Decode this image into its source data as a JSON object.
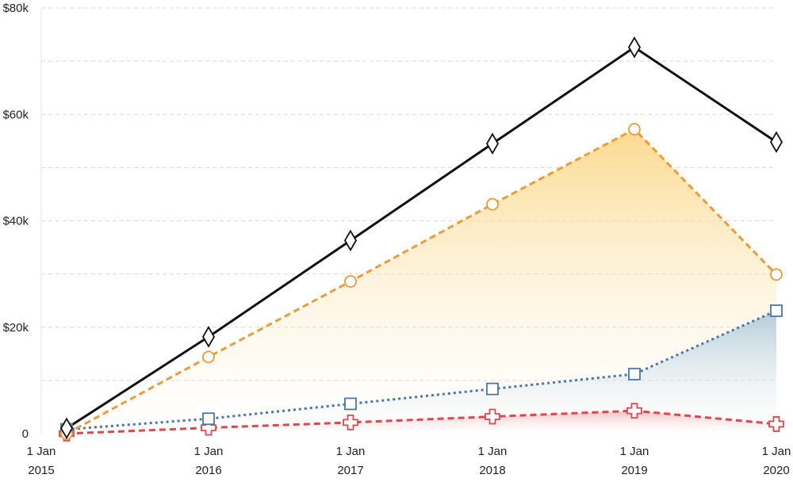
{
  "chart_data": {
    "type": "line",
    "title": "",
    "xlabel": "",
    "ylabel": "",
    "x": [
      "2015-01-01",
      "2016-01-01",
      "2017-01-01",
      "2018-01-01",
      "2019-01-01",
      "2020-01-01"
    ],
    "x_tick_labels": [
      {
        "line1": "1 Jan",
        "line2": "2015"
      },
      {
        "line1": "1 Jan",
        "line2": "2016"
      },
      {
        "line1": "1 Jan",
        "line2": "2017"
      },
      {
        "line1": "1 Jan",
        "line2": "2018"
      },
      {
        "line1": "1 Jan",
        "line2": "2019"
      },
      {
        "line1": "1 Jan",
        "line2": "2020"
      }
    ],
    "y_ticks": [
      0,
      20000,
      40000,
      60000,
      80000
    ],
    "y_tick_labels": [
      "0",
      "$20k",
      "$40k",
      "$60k",
      "$80k"
    ],
    "ylim": [
      0,
      80000
    ],
    "grid": true,
    "legend": "none",
    "series": [
      {
        "values": [
          1000,
          18200,
          36300,
          54500,
          72600,
          54800
        ],
        "color": "#111111",
        "marker": "diamond",
        "line_style": "solid",
        "fill": false
      },
      {
        "values": [
          0,
          14400,
          28600,
          43100,
          57200,
          29900
        ],
        "color": "#ee9a3a",
        "marker": "circle",
        "line_style": "dashed",
        "fill": true
      },
      {
        "values": [
          800,
          2800,
          5600,
          8400,
          11200,
          23100
        ],
        "color": "#4a76a8",
        "marker": "square",
        "line_style": "dotted",
        "fill": true
      },
      {
        "values": [
          0,
          1100,
          2100,
          3200,
          4300,
          1800
        ],
        "color": "#e0474c",
        "marker": "cross",
        "line_style": "dashed",
        "fill": true
      }
    ]
  }
}
